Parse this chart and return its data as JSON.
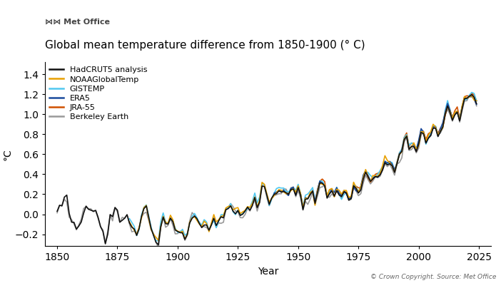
{
  "title": "Global mean temperature difference from 1850-1900 (° C)",
  "xlabel": "Year",
  "ylabel": "°C",
  "xlim": [
    1845,
    2030
  ],
  "ylim": [
    -0.32,
    1.52
  ],
  "yticks": [
    -0.2,
    0.0,
    0.2,
    0.4,
    0.6,
    0.8,
    1.0,
    1.2,
    1.4
  ],
  "xticks": [
    1850,
    1875,
    1900,
    1925,
    1950,
    1975,
    2000,
    2025
  ],
  "series": {
    "HadCRUT5 analysis": {
      "color": "#111111",
      "lw": 1.2,
      "zorder": 5
    },
    "NOAAGlobalTemp": {
      "color": "#E8A000",
      "lw": 1.2,
      "zorder": 4
    },
    "GISTEMP": {
      "color": "#50C8F0",
      "lw": 1.2,
      "zorder": 3
    },
    "ERA5": {
      "color": "#1A4A9C",
      "lw": 1.2,
      "zorder": 4
    },
    "JRA-55": {
      "color": "#D05000",
      "lw": 1.2,
      "zorder": 3
    },
    "Berkeley Earth": {
      "color": "#999999",
      "lw": 1.2,
      "zorder": 2
    }
  },
  "copyright": "© Crown Copyright. Source: Met Office",
  "background_color": "#ffffff",
  "metoffice_text": "≈≈ Met Office",
  "legend_order": [
    "HadCRUT5 analysis",
    "NOAAGlobalTemp",
    "GISTEMP",
    "ERA5",
    "JRA-55",
    "Berkeley Earth"
  ]
}
